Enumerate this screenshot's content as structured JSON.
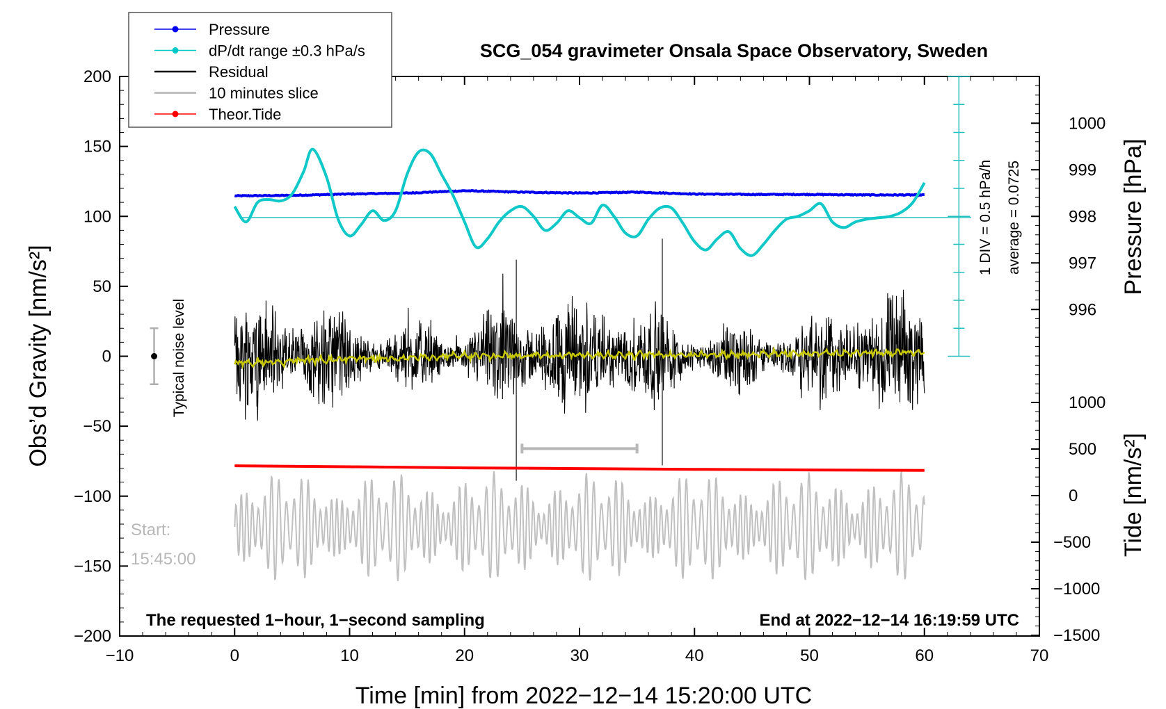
{
  "chart_data": {
    "type": "line",
    "title": "SCG_054 gravimeter Onsala Space Observatory, Sweden",
    "xlabel": "Time [min] from 2022−12−14 15:20:00 UTC",
    "ylabel_left": "Obs’d Gravity [nm/s²]",
    "ylabel_right_top": "Pressure [hPa]",
    "ylabel_right_bottom": "Tide [nm/s²]",
    "xlim": [
      -10,
      70
    ],
    "ylim": [
      -200,
      200
    ],
    "x_ticks": [
      "−10",
      "0",
      "10",
      "20",
      "30",
      "40",
      "50",
      "60",
      "70"
    ],
    "y_ticks": [
      "−200",
      "−150",
      "−100",
      "−50",
      "0",
      "50",
      "100",
      "150",
      "200"
    ],
    "pressure_ticks": [
      "996",
      "997",
      "998",
      "999",
      "1000"
    ],
    "tide_ticks": [
      "−1500",
      "−1000",
      "−500",
      "0",
      "500",
      "1000"
    ],
    "legend": [
      {
        "label": "Pressure",
        "color": "#0000ee",
        "marker": true
      },
      {
        "label": "dP/dt range ±0.3 hPa/s",
        "color": "#00c8c8",
        "marker": true
      },
      {
        "label": "Residual",
        "color": "#000000",
        "marker": false
      },
      {
        "label": "10 minutes slice",
        "color": "#c0c0c0",
        "marker": false
      },
      {
        "label": "Theor.Tide",
        "color": "#ff0000",
        "marker": true
      }
    ],
    "annotations": {
      "noise_label": "Typical noise level",
      "start_label": "Start:",
      "start_time": "15:45:00",
      "footer_left": "The requested 1−hour, 1−second sampling",
      "footer_right": "End at 2022−12−14 16:19:59 UTC",
      "dpdt_scale": "1 DIV = 0.5 hPa/h",
      "dpdt_average": "average = 0.0725"
    },
    "noise_bar": {
      "x": -7,
      "center": 0,
      "half_range": 20
    },
    "slice_bracket": {
      "x_start": 25,
      "x_end": 35,
      "y": -66
    },
    "pressure_series": {
      "unit": "hPa",
      "x": [
        0,
        5,
        10,
        15,
        20,
        25,
        30,
        35,
        40,
        45,
        50,
        55,
        60
      ],
      "values": [
        998.44,
        998.45,
        998.48,
        998.5,
        998.55,
        998.52,
        998.5,
        998.52,
        998.48,
        998.47,
        998.47,
        998.46,
        998.46
      ]
    },
    "dpdt_series": {
      "unit": "gravity-axis units (100 = zero rate)",
      "x": [
        0,
        1,
        2,
        3,
        4,
        5,
        6,
        6.8,
        8,
        9,
        10,
        11,
        12,
        13,
        14,
        15,
        16,
        17,
        18,
        19,
        20,
        21,
        22,
        23,
        24,
        25,
        26,
        27,
        28,
        29,
        30,
        31,
        32,
        33,
        34,
        35,
        36,
        37,
        38,
        39,
        40,
        41,
        42,
        43,
        44,
        45,
        46,
        47,
        48,
        49,
        50,
        51,
        52,
        53,
        54,
        55,
        56,
        57,
        58,
        59,
        60
      ],
      "values": [
        107,
        96,
        110,
        112,
        111,
        116,
        132,
        148,
        128,
        98,
        86,
        94,
        104,
        97,
        104,
        130,
        146,
        145,
        130,
        115,
        96,
        78,
        84,
        96,
        104,
        107,
        100,
        90,
        95,
        104,
        99,
        95,
        108,
        100,
        88,
        86,
        98,
        106,
        106,
        95,
        82,
        76,
        84,
        89,
        77,
        72,
        80,
        90,
        98,
        100,
        104,
        109,
        96,
        92,
        96,
        98,
        99,
        100,
        103,
        110,
        124
      ]
    },
    "tide_series": {
      "unit": "nm/s² (tide axis)",
      "x": [
        0,
        10,
        20,
        30,
        40,
        50,
        60
      ],
      "values": [
        320,
        310,
        298,
        290,
        282,
        275,
        270
      ]
    },
    "residual_series": {
      "description_x_range": [
        0,
        60
      ],
      "typical_amplitude": 30,
      "max_spike": 84,
      "min_spike": -89
    },
    "smoothed_residual_series": {
      "x": [
        0,
        10,
        20,
        30,
        40,
        50,
        60
      ],
      "values": [
        -5,
        -2,
        0,
        1,
        1,
        2,
        3
      ]
    },
    "slice_series": {
      "x_range": [
        0,
        60
      ],
      "center": -122,
      "amplitude": 40
    }
  }
}
